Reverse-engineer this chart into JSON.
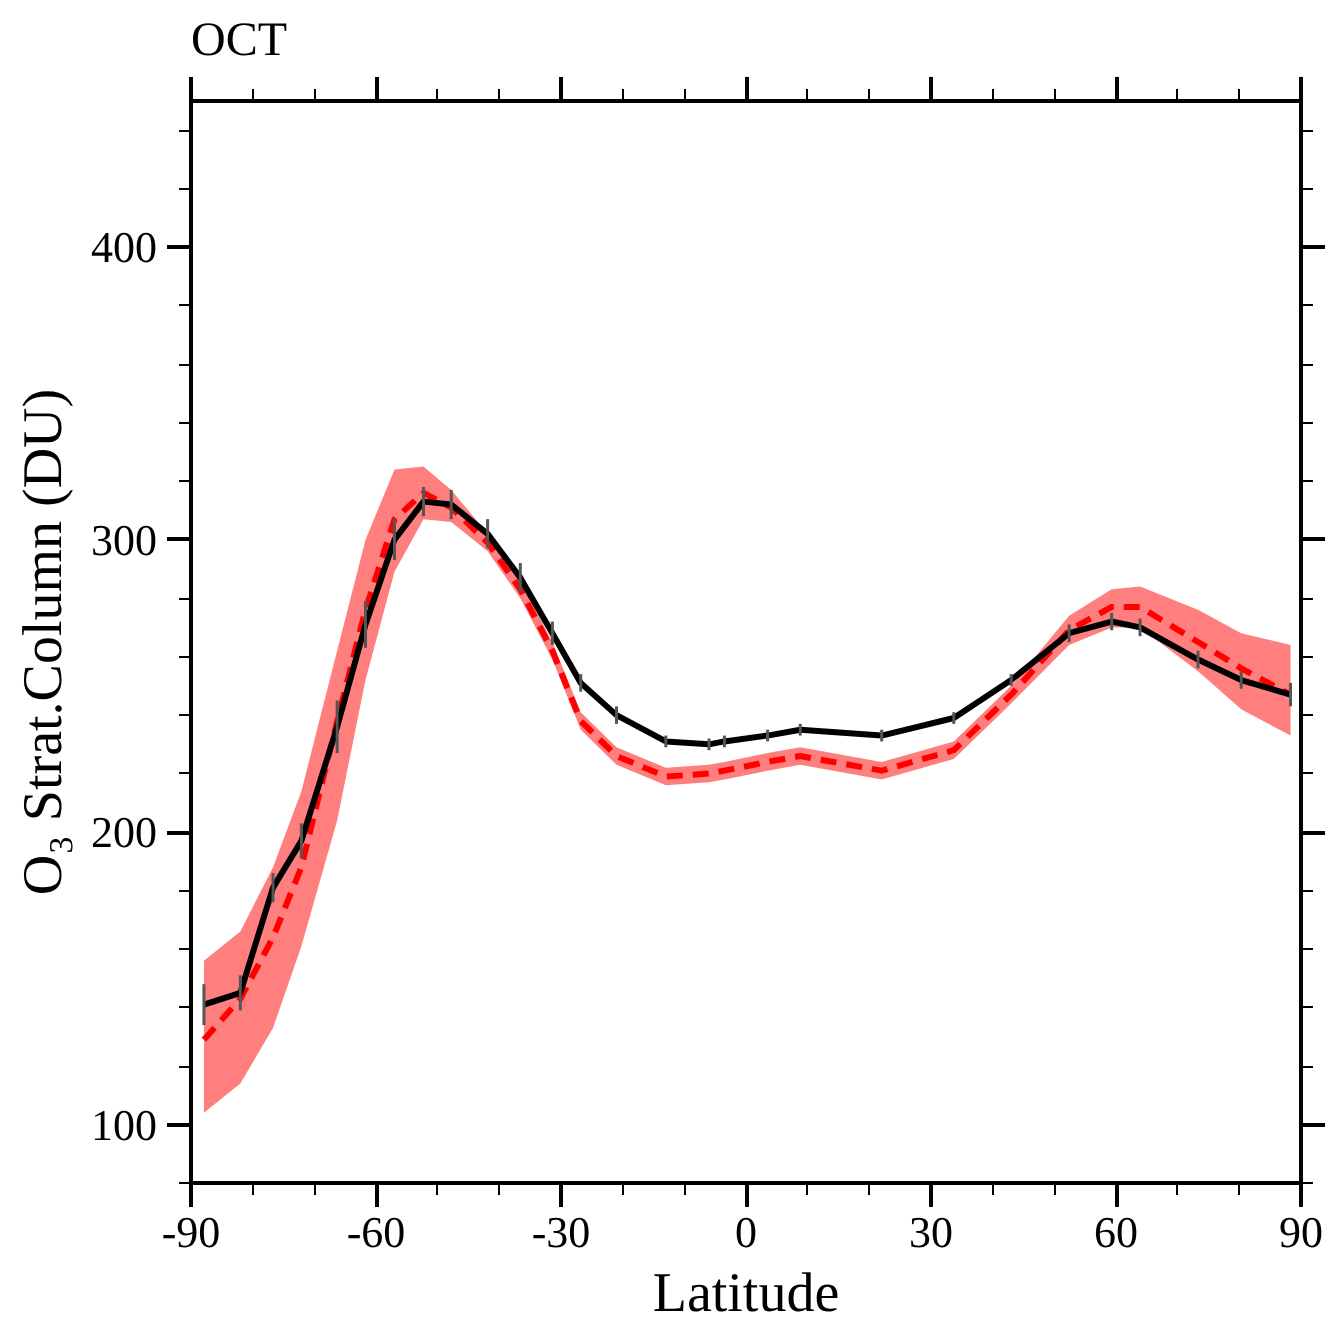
{
  "chart_data": {
    "type": "line",
    "title": "OCT",
    "xlabel": "Latitude",
    "ylabel": "O₃ Strat.Column (DU)",
    "xlim": [
      -90,
      90
    ],
    "ylim": [
      80,
      450
    ],
    "xticks": [
      -90,
      -60,
      -30,
      0,
      30,
      60,
      90
    ],
    "yticks": [
      100,
      200,
      300,
      400
    ],
    "grid": false,
    "series": [
      {
        "color": "#000000",
        "line_style": "solid",
        "x": [
          -87.9,
          -82,
          -76.7,
          -72.1,
          -66.3,
          -61.7,
          -57,
          -52.3,
          -47.8,
          -41.9,
          -36.6,
          -31.4,
          -26.8,
          -21,
          -13,
          -6,
          -3.5,
          3.5,
          8.8,
          22,
          33.7,
          43,
          52.4,
          59.3,
          63.9,
          73.3,
          80.3,
          88.3
        ],
        "values": [
          141,
          145,
          181,
          197,
          236,
          271,
          300,
          313,
          312,
          302,
          287,
          268,
          251,
          240,
          231,
          230,
          231,
          233,
          235,
          233,
          239,
          252,
          268,
          272,
          270,
          259,
          252,
          247
        ],
        "errors": [
          7,
          6,
          5,
          6,
          9,
          8,
          7,
          5,
          5,
          5,
          5,
          4,
          3,
          3,
          2,
          2,
          2,
          2,
          2,
          2,
          2,
          2,
          3,
          3,
          3,
          3,
          3,
          4
        ]
      },
      {
        "color": "#ff0000",
        "line_style": "dashed",
        "x": [
          -87.9,
          -82,
          -76.7,
          -72.1,
          -66.3,
          -61.7,
          -57,
          -52.3,
          -47.8,
          -41.9,
          -36.6,
          -31.4,
          -26.8,
          -21,
          -13,
          -6,
          -3.5,
          3.5,
          8.8,
          22,
          33.7,
          43,
          52.4,
          59.3,
          63.9,
          73.3,
          80.3,
          88.3
        ],
        "values": [
          129,
          143,
          164,
          188,
          238,
          276,
          307,
          316,
          311,
          299,
          283,
          262,
          238,
          226,
          219,
          220,
          221,
          224,
          226,
          221,
          228,
          247,
          269,
          277,
          277,
          265,
          256,
          247
        ],
        "lower": [
          104,
          114,
          133,
          161,
          204,
          252,
          289,
          307,
          306,
          296,
          280,
          259,
          235,
          223,
          216,
          217,
          218,
          221,
          223,
          218,
          225,
          244,
          264,
          270,
          270,
          255,
          242,
          233
        ],
        "upper": [
          156,
          166,
          188,
          214,
          262,
          300,
          324,
          325,
          317,
          302,
          286,
          265,
          241,
          229,
          222,
          223,
          224,
          227,
          229,
          224,
          231,
          250,
          274,
          283,
          284,
          276,
          268,
          264
        ]
      }
    ]
  }
}
